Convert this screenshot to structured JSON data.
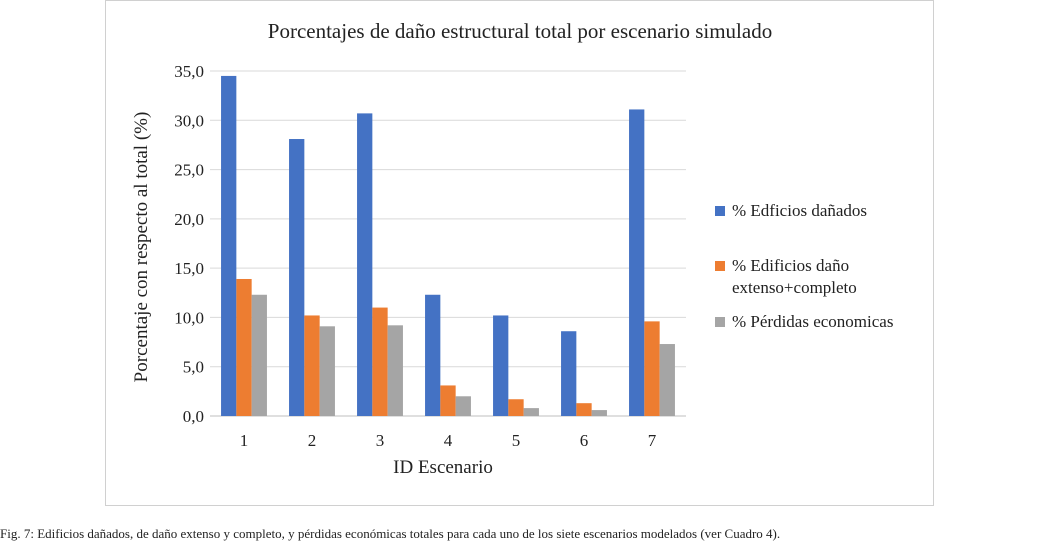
{
  "chart_data": {
    "type": "bar",
    "title": "Porcentajes de daño estructural total por escenario simulado",
    "xlabel": "ID Escenario",
    "ylabel": "Porcentaje con respecto al total (%)",
    "categories": [
      "1",
      "2",
      "3",
      "4",
      "5",
      "6",
      "7"
    ],
    "yticks": [
      "0,0",
      "5,0",
      "10,0",
      "15,0",
      "20,0",
      "25,0",
      "30,0",
      "35,0"
    ],
    "ylim": [
      0,
      35
    ],
    "grid": "horizontal",
    "legend_position": "right",
    "series": [
      {
        "name": "% Edficios dañados",
        "color": "#4472C4",
        "values": [
          34.5,
          28.1,
          30.7,
          12.3,
          10.2,
          8.6,
          31.1
        ]
      },
      {
        "name": "% Edificios daño extenso+completo",
        "name_lines": [
          "% Edificios daño",
          "extenso+completo"
        ],
        "color": "#ED7D31",
        "values": [
          13.9,
          10.2,
          11.0,
          3.1,
          1.7,
          1.3,
          9.6
        ]
      },
      {
        "name": "% Pérdidas economicas",
        "color": "#A5A5A5",
        "values": [
          12.3,
          9.1,
          9.2,
          2.0,
          0.8,
          0.6,
          7.3
        ]
      }
    ]
  },
  "caption": "Fig. 7: Edificios dañados, de daño extenso y completo, y pérdidas económicas totales para cada uno de los siete escenarios modelados (ver Cuadro 4)."
}
